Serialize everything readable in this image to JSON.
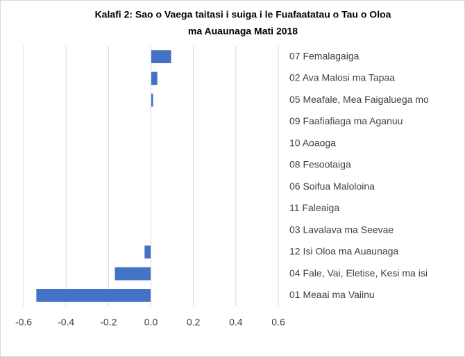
{
  "chart_data": {
    "type": "hbar",
    "title": [
      "Kalafi 2: Sao o Vaega taitasi i suiga i le Fuafaatatau o Tau o Oloa",
      "ma Auaunaga Mati 2018"
    ],
    "categories": [
      "07 Femalagaiga",
      "02 Ava Malosi ma Tapaa",
      "05 Meafale, Mea Faigaluega mo",
      "09 Faafiafiaga ma Aganuu",
      "10 Aoaoga",
      "08 Fesootaiga",
      "06 Soifua Maloloina",
      "11 Faleaiga",
      "03 Lavalava ma Seevae",
      "12 Isi Oloa ma Auaunaga",
      "04 Fale, Vai, Eletise, Kesi ma isi",
      "01 Meaai ma Vaiinu"
    ],
    "values": [
      0.095,
      0.03,
      0.01,
      0,
      0,
      0,
      0,
      0,
      0,
      -0.03,
      -0.17,
      -0.54
    ],
    "color": "#4472c4",
    "xlim": [
      -0.6,
      0.6
    ],
    "xticks": [
      -0.6,
      -0.4,
      -0.2,
      {
        "value": 0,
        "label": "0.0"
      },
      0.2,
      0.4,
      0.6
    ],
    "grid": true
  }
}
